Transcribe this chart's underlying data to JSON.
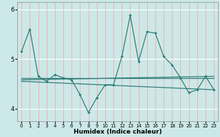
{
  "title": "",
  "xlabel": "Humidex (Indice chaleur)",
  "ylabel": "",
  "bg_color": "#cce8e8",
  "grid_color": "#ff9999",
  "line_color": "#2d7d78",
  "xlim": [
    -0.5,
    23.5
  ],
  "ylim": [
    3.75,
    6.15
  ],
  "yticks": [
    4,
    5,
    6
  ],
  "xticks": [
    0,
    1,
    2,
    3,
    4,
    5,
    6,
    7,
    8,
    9,
    10,
    11,
    12,
    13,
    14,
    15,
    16,
    17,
    18,
    19,
    20,
    21,
    22,
    23
  ],
  "series": {
    "main": {
      "x": [
        0,
        1,
        2,
        3,
        4,
        5,
        6,
        7,
        8,
        9,
        10,
        11,
        12,
        13,
        14,
        15,
        16,
        17,
        18,
        19,
        20,
        21,
        22,
        23
      ],
      "y": [
        5.15,
        5.6,
        4.65,
        4.55,
        4.68,
        4.62,
        4.58,
        4.28,
        3.92,
        4.22,
        4.48,
        4.48,
        5.05,
        5.88,
        4.95,
        5.55,
        5.52,
        5.05,
        4.88,
        4.62,
        4.32,
        4.38,
        4.65,
        4.38
      ]
    },
    "trend1": {
      "x": [
        0,
        23
      ],
      "y": [
        4.62,
        4.62
      ]
    },
    "trend2": {
      "x": [
        0,
        23
      ],
      "y": [
        4.55,
        4.38
      ]
    },
    "trend3": {
      "x": [
        0,
        23
      ],
      "y": [
        4.58,
        4.65
      ]
    }
  }
}
